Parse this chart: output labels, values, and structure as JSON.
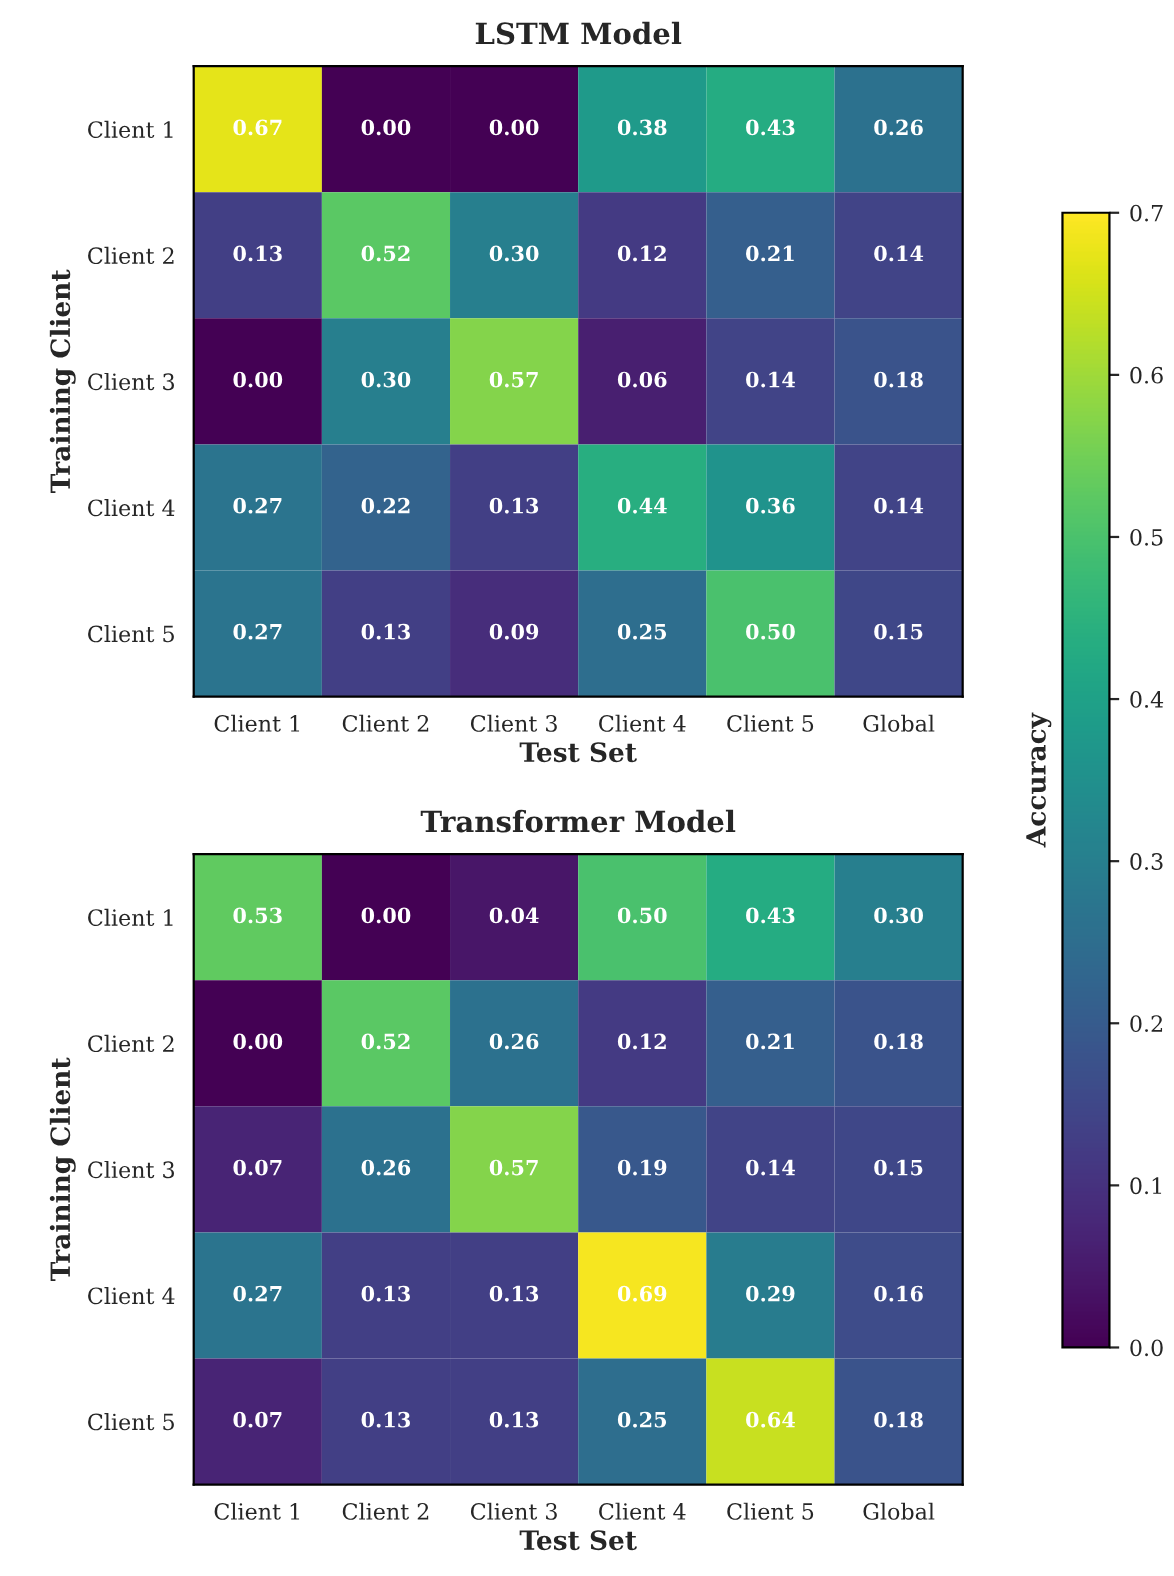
{
  "chart_data": [
    {
      "type": "heatmap",
      "title": "LSTM Model",
      "xlabel": "Test Set",
      "ylabel": "Training Client",
      "categories": [
        "Client 1",
        "Client 2",
        "Client 3",
        "Client 4",
        "Client 5",
        "Global"
      ],
      "y_categories": [
        "Client 1",
        "Client 2",
        "Client 3",
        "Client 4",
        "Client 5"
      ],
      "cells": [
        [
          0.67,
          0.0,
          0.0,
          0.38,
          0.43,
          0.26
        ],
        [
          0.13,
          0.52,
          0.3,
          0.12,
          0.21,
          0.14
        ],
        [
          0.0,
          0.3,
          0.57,
          0.06,
          0.14,
          0.18
        ],
        [
          0.27,
          0.22,
          0.13,
          0.44,
          0.36,
          0.14
        ],
        [
          0.27,
          0.13,
          0.09,
          0.25,
          0.5,
          0.15
        ]
      ],
      "cell_labels": [
        [
          "0.67",
          "0.00",
          "0.00",
          "0.38",
          "0.43",
          "0.26"
        ],
        [
          "0.13",
          "0.52",
          "0.30",
          "0.12",
          "0.21",
          "0.14"
        ],
        [
          "0.00",
          "0.30",
          "0.57",
          "0.06",
          "0.14",
          "0.18"
        ],
        [
          "0.27",
          "0.22",
          "0.13",
          "0.44",
          "0.36",
          "0.14"
        ],
        [
          "0.27",
          "0.13",
          "0.09",
          "0.25",
          "0.50",
          "0.15"
        ]
      ],
      "clim": [
        0,
        0.7
      ],
      "clabel": "Accuracy",
      "cticks": [
        {
          "value": 0,
          "label": "0.0"
        },
        {
          "value": 0.1,
          "label": "0.1"
        },
        {
          "value": 0.2,
          "label": "0.2"
        },
        {
          "value": 0.3,
          "label": "0.3"
        },
        {
          "value": 0.4,
          "label": "0.4"
        },
        {
          "value": 0.5,
          "label": "0.5"
        },
        {
          "value": 0.6,
          "label": "0.6"
        },
        {
          "value": 0.7,
          "label": "0.7"
        }
      ]
    },
    {
      "type": "heatmap",
      "title": "Transformer Model",
      "xlabel": "Test Set",
      "ylabel": "Training Client",
      "categories": [
        "Client 1",
        "Client 2",
        "Client 3",
        "Client 4",
        "Client 5",
        "Global"
      ],
      "y_categories": [
        "Client 1",
        "Client 2",
        "Client 3",
        "Client 4",
        "Client 5"
      ],
      "cells": [
        [
          0.53,
          0.0,
          0.04,
          0.5,
          0.43,
          0.3
        ],
        [
          0.0,
          0.52,
          0.26,
          0.12,
          0.21,
          0.18
        ],
        [
          0.07,
          0.26,
          0.57,
          0.19,
          0.14,
          0.15
        ],
        [
          0.27,
          0.13,
          0.13,
          0.69,
          0.29,
          0.16
        ],
        [
          0.07,
          0.13,
          0.13,
          0.25,
          0.64,
          0.18
        ]
      ],
      "cell_labels": [
        [
          "0.53",
          "0.00",
          "0.04",
          "0.50",
          "0.43",
          "0.30"
        ],
        [
          "0.00",
          "0.52",
          "0.26",
          "0.12",
          "0.21",
          "0.18"
        ],
        [
          "0.07",
          "0.26",
          "0.57",
          "0.19",
          "0.14",
          "0.15"
        ],
        [
          "0.27",
          "0.13",
          "0.13",
          "0.69",
          "0.29",
          "0.16"
        ],
        [
          "0.07",
          "0.13",
          "0.13",
          "0.25",
          "0.64",
          "0.18"
        ]
      ]
    }
  ]
}
